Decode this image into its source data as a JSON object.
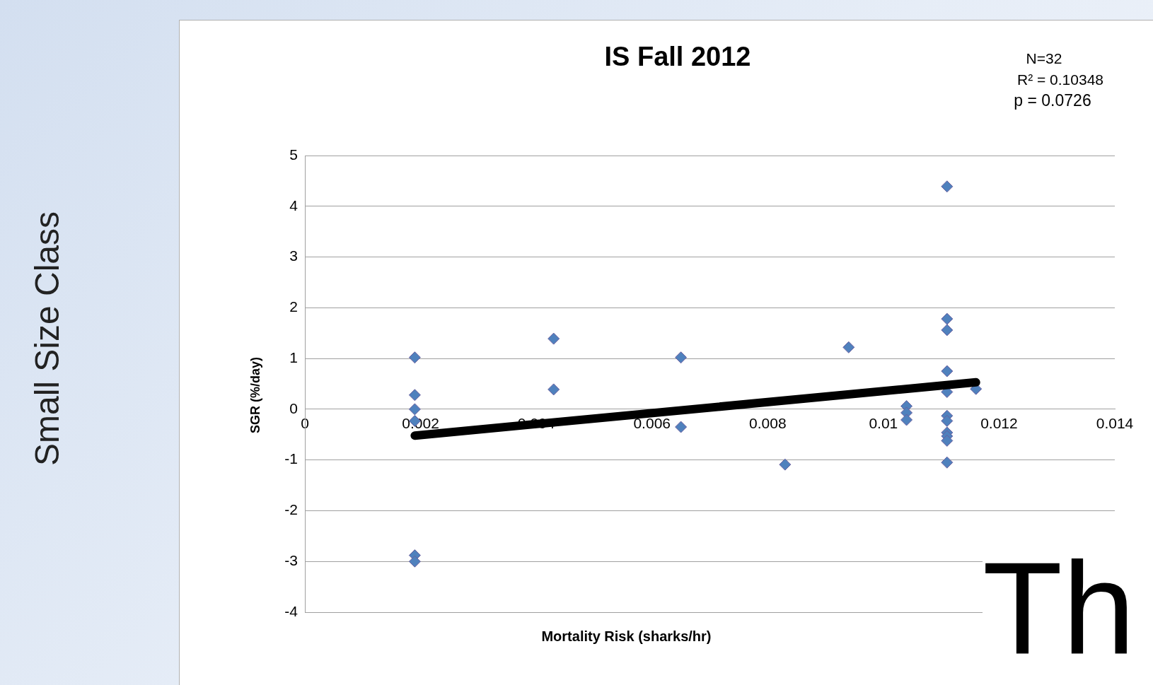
{
  "chart_data": {
    "type": "scatter",
    "title": "IS Fall 2012",
    "xlabel": "Mortality Risk (sharks/hr)",
    "ylabel": "SGR (%/day)",
    "annotations": [
      "N=32",
      "R² = 0.10348",
      "p = 0.0726",
      "Small Size Class",
      "Th"
    ],
    "series": [
      {
        "type": "scatter",
        "color": "#4f81bd",
        "marker": "diamond",
        "x": [
          0.0019,
          0.0019,
          0.0019,
          0.0019,
          0.0019,
          0.0019,
          0.0043,
          0.0043,
          0.0065,
          0.0065,
          0.0083,
          0.0094,
          0.0104,
          0.0104,
          0.0104,
          0.0111,
          0.0111,
          0.0111,
          0.0111,
          0.0111,
          0.0111,
          0.0111,
          0.0111,
          0.0111,
          0.0111,
          0.0111,
          0.0116
        ],
        "values": [
          1.02,
          0.28,
          0,
          -0.23,
          -2.88,
          -3.0,
          1.39,
          0.39,
          1.02,
          -0.35,
          -1.09,
          1.22,
          0.06,
          -0.07,
          -0.21,
          4.39,
          1.78,
          1.56,
          0.75,
          0.34,
          -0.13,
          -0.23,
          -0.46,
          -0.53,
          -0.62,
          -1.05,
          0.4
        ]
      },
      {
        "type": "line",
        "color": "#000000",
        "marker": "none",
        "x": [
          0.0019,
          0.0116
        ],
        "values": [
          -0.52,
          0.53
        ]
      }
    ],
    "xlim": [
      0,
      0.014
    ],
    "xticks": [
      0,
      0.002,
      0.004,
      0.006,
      0.008,
      0.01,
      0.012,
      0.014
    ],
    "ylim": [
      -4,
      5
    ],
    "yticks": [
      -4,
      -3,
      -2,
      -1,
      0,
      1,
      2,
      3,
      4,
      5
    ],
    "grid": "y"
  }
}
